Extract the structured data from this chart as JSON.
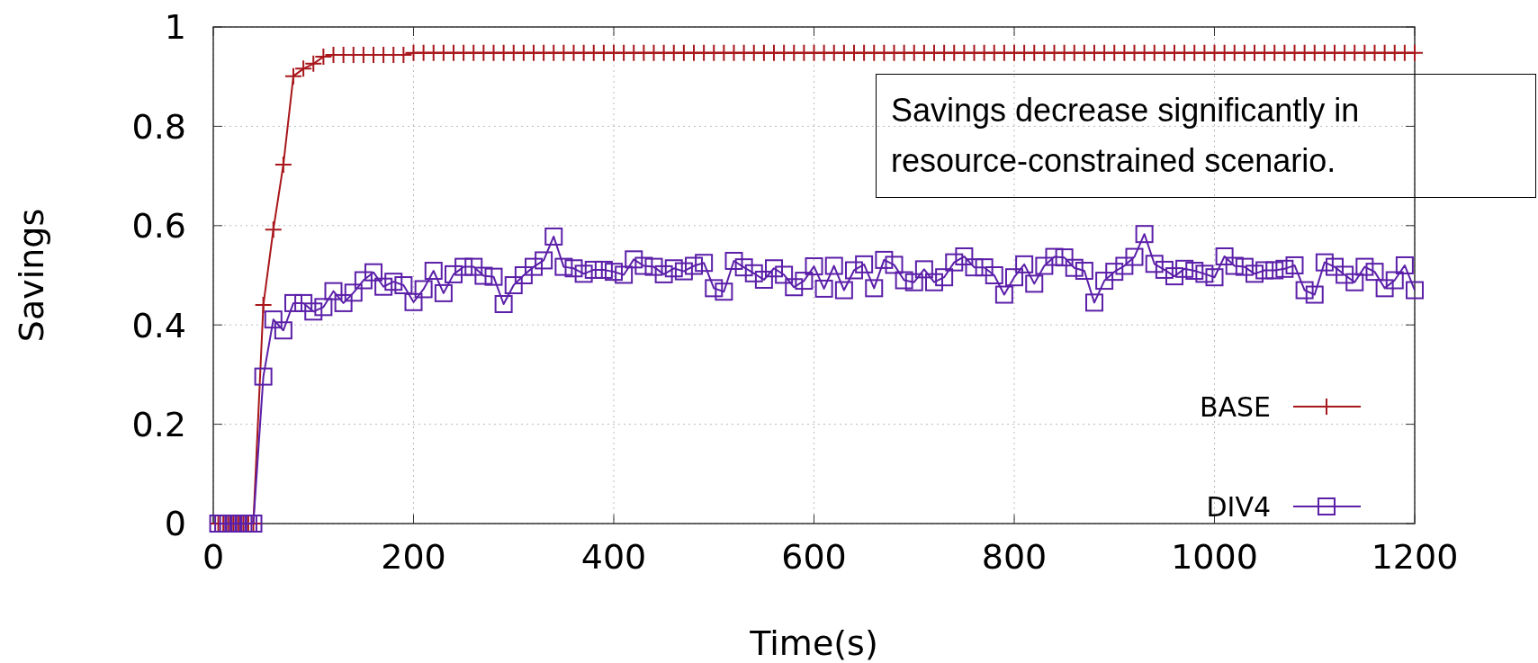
{
  "chart_data": {
    "type": "line",
    "xlabel": "Time(s)",
    "ylabel": "Savings",
    "annotations": [
      "Savings decrease significantly in resource-constrained scenario."
    ],
    "x": [
      5,
      10,
      15,
      20,
      25,
      30,
      35,
      40,
      50,
      60,
      70,
      80,
      90,
      100,
      110,
      120,
      130,
      140,
      150,
      160,
      170,
      180,
      190,
      200,
      210,
      220,
      230,
      240,
      250,
      260,
      270,
      280,
      290,
      300,
      310,
      320,
      330,
      340,
      350,
      360,
      370,
      380,
      390,
      400,
      410,
      420,
      430,
      440,
      450,
      460,
      470,
      480,
      490,
      500,
      510,
      520,
      530,
      540,
      550,
      560,
      570,
      580,
      590,
      600,
      610,
      620,
      630,
      640,
      650,
      660,
      670,
      680,
      690,
      700,
      710,
      720,
      730,
      740,
      750,
      760,
      770,
      780,
      790,
      800,
      810,
      820,
      830,
      840,
      850,
      860,
      870,
      880,
      890,
      900,
      910,
      920,
      930,
      940,
      950,
      960,
      970,
      980,
      990,
      1000,
      1010,
      1020,
      1030,
      1040,
      1050,
      1060,
      1070,
      1080,
      1090,
      1100,
      1110,
      1120,
      1130,
      1140,
      1150,
      1160,
      1170,
      1180,
      1190,
      1200
    ],
    "series": [
      {
        "name": "BASE",
        "color": "#a8171b",
        "marker": "cross",
        "values": [
          0,
          0,
          0,
          0,
          0,
          0,
          0,
          0,
          0.44,
          0.592,
          0.723,
          0.901,
          0.916,
          0.926,
          0.94,
          0.944,
          0.944,
          0.944,
          0.944,
          0.944,
          0.944,
          0.944,
          0.944,
          0.948,
          0.948,
          0.948,
          0.948,
          0.948,
          0.948,
          0.948,
          0.948,
          0.948,
          0.948,
          0.948,
          0.948,
          0.948,
          0.948,
          0.948,
          0.948,
          0.948,
          0.948,
          0.948,
          0.948,
          0.948,
          0.948,
          0.948,
          0.948,
          0.948,
          0.948,
          0.948,
          0.948,
          0.948,
          0.948,
          0.948,
          0.948,
          0.948,
          0.948,
          0.948,
          0.948,
          0.948,
          0.948,
          0.948,
          0.948,
          0.948,
          0.948,
          0.948,
          0.948,
          0.948,
          0.948,
          0.948,
          0.948,
          0.948,
          0.948,
          0.948,
          0.948,
          0.948,
          0.948,
          0.948,
          0.948,
          0.948,
          0.948,
          0.948,
          0.948,
          0.948,
          0.948,
          0.948,
          0.948,
          0.948,
          0.948,
          0.948,
          0.948,
          0.948,
          0.948,
          0.948,
          0.948,
          0.948,
          0.948,
          0.948,
          0.948,
          0.948,
          0.948,
          0.948,
          0.948,
          0.948,
          0.948,
          0.948,
          0.948,
          0.948,
          0.948,
          0.948,
          0.948,
          0.948,
          0.948,
          0.948,
          0.948,
          0.948,
          0.948,
          0.948,
          0.948,
          0.948,
          0.948,
          0.948,
          0.948,
          0.948
        ]
      },
      {
        "name": "DIV4",
        "color": "#5b1fa8",
        "marker": "square",
        "values": [
          0,
          0,
          0,
          0,
          0,
          0,
          0,
          0,
          0.296,
          0.411,
          0.389,
          0.444,
          0.444,
          0.427,
          0.436,
          0.468,
          0.444,
          0.465,
          0.49,
          0.506,
          0.477,
          0.487,
          0.48,
          0.446,
          0.472,
          0.509,
          0.464,
          0.502,
          0.517,
          0.517,
          0.499,
          0.497,
          0.442,
          0.48,
          0.5,
          0.517,
          0.53,
          0.578,
          0.517,
          0.514,
          0.503,
          0.511,
          0.511,
          0.507,
          0.501,
          0.532,
          0.519,
          0.517,
          0.502,
          0.514,
          0.508,
          0.519,
          0.525,
          0.474,
          0.467,
          0.529,
          0.516,
          0.504,
          0.491,
          0.514,
          0.501,
          0.476,
          0.489,
          0.518,
          0.473,
          0.519,
          0.47,
          0.51,
          0.522,
          0.474,
          0.531,
          0.521,
          0.49,
          0.486,
          0.512,
          0.486,
          0.496,
          0.526,
          0.538,
          0.516,
          0.516,
          0.5,
          0.461,
          0.496,
          0.522,
          0.483,
          0.519,
          0.537,
          0.536,
          0.515,
          0.509,
          0.445,
          0.489,
          0.507,
          0.519,
          0.537,
          0.583,
          0.523,
          0.511,
          0.498,
          0.513,
          0.509,
          0.503,
          0.496,
          0.538,
          0.519,
          0.517,
          0.503,
          0.51,
          0.51,
          0.513,
          0.52,
          0.47,
          0.461,
          0.526,
          0.517,
          0.501,
          0.486,
          0.517,
          0.507,
          0.474,
          0.49,
          0.52,
          0.47
        ]
      }
    ],
    "xlim": [
      0,
      1200
    ],
    "xticks": [
      0,
      200,
      400,
      600,
      800,
      1000,
      1200
    ],
    "ylim": [
      0,
      1
    ],
    "yticks": [
      0,
      0.2,
      0.4,
      0.6,
      0.8,
      1
    ],
    "grid": true,
    "legend": "bottom right",
    "line_style": "solid"
  }
}
